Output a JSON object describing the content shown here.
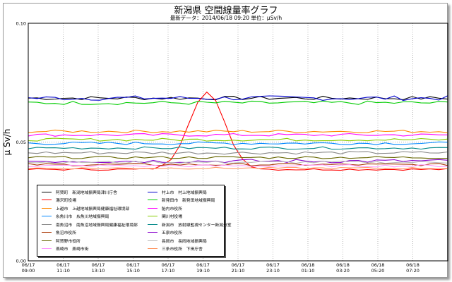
{
  "chart_data": {
    "type": "line",
    "title": "新潟県 空間線量率グラフ",
    "subtitle": "最新データ：2014/06/18 09:20 単位：μSv/h",
    "ylabel": "μ Sv/h",
    "xlabel": "",
    "ylim": [
      0,
      0.1
    ],
    "y_ticks": [
      "0.00",
      "0.05",
      "0.10"
    ],
    "x_ticks": [
      [
        "06/17",
        "09:00"
      ],
      [
        "06/17",
        "11:10"
      ],
      [
        "06/17",
        "13:10"
      ],
      [
        "06/17",
        "15:10"
      ],
      [
        "06/17",
        "17:10"
      ],
      [
        "06/17",
        "19:10"
      ],
      [
        "06/17",
        "21:10"
      ],
      [
        "06/17",
        "23:10"
      ],
      [
        "06/18",
        "01:10"
      ],
      [
        "06/18",
        "03:20"
      ],
      [
        "06/18",
        "05:20"
      ],
      [
        "06/18",
        "07:20"
      ]
    ],
    "grid": true,
    "legend_position": "bottom-left",
    "x_points": 48,
    "series": [
      {
        "name": "阿賀町　新潟地域振興局津川庁舎",
        "color": "#000000",
        "base": 0.0685,
        "noise": 0.0008
      },
      {
        "name": "村上市　村上地域振興局",
        "color": "#0000cc",
        "base": 0.0685,
        "noise": 0.001
      },
      {
        "name": "湯沢町役場",
        "color": "#ff0000",
        "base": 0.0385,
        "noise": 0.0004
      },
      {
        "name": "新発田市　新発田地域振興局",
        "color": "#00cc00",
        "base": 0.0665,
        "noise": 0.0008
      },
      {
        "name": "上越市　上越地域振興局健康福祉環境部",
        "color": "#ff8800",
        "base": 0.0545,
        "noise": 0.0006
      },
      {
        "name": "胎内市役所",
        "color": "#ff00ff",
        "base": 0.053,
        "noise": 0.0006
      },
      {
        "name": "糸魚川市　糸魚川地域振興局",
        "color": "#0088ff",
        "base": 0.0495,
        "noise": 0.0006
      },
      {
        "name": "関川村役場",
        "color": "#88cc00",
        "base": 0.051,
        "noise": 0.0006
      },
      {
        "name": "南魚沼市　南魚沼地域振興局健康福祉環境部",
        "color": "#888888",
        "base": 0.0455,
        "noise": 0.0006
      },
      {
        "name": "新潟市　放射線監視センター新潟分室",
        "color": "#008888",
        "base": 0.0475,
        "noise": 0.0005
      },
      {
        "name": "魚沼市役所",
        "color": "#aa3300",
        "base": 0.0405,
        "noise": 0.0005
      },
      {
        "name": "五泉市役所",
        "color": "#8800cc",
        "base": 0.042,
        "noise": 0.0008
      },
      {
        "name": "阿賀野市役所",
        "color": "#666600",
        "base": 0.0435,
        "noise": 0.0005
      },
      {
        "name": "長岡市　長岡地域振興局",
        "color": "#bbbbbb",
        "base": 0.0415,
        "noise": 0.0005
      },
      {
        "name": "燕崎市　燕崎市街",
        "color": "#ff99ff",
        "base": 0.04,
        "noise": 0.0005
      },
      {
        "name": "三条市役所　下田庁舎",
        "color": "#ff9966",
        "base": 0.039,
        "noise": 0.0004
      }
    ],
    "annotations": [
      {
        "series": "湯沢町役場",
        "shape": "peak",
        "peak_value": 0.071,
        "peak_index": 20
      }
    ]
  }
}
